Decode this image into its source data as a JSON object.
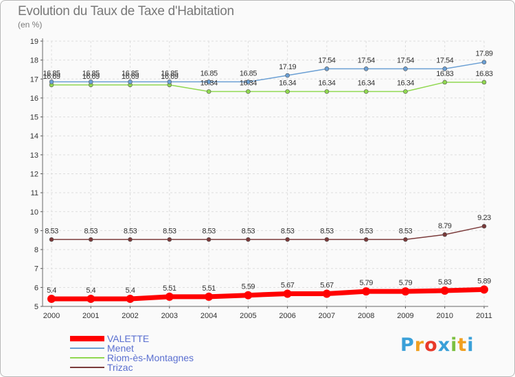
{
  "chart_data": {
    "type": "line",
    "title": "Evolution du Taux de Taxe d'Habitation",
    "subtitle": "(en %)",
    "x": [
      "2000",
      "2001",
      "2002",
      "2003",
      "2004",
      "2005",
      "2006",
      "2007",
      "2008",
      "2009",
      "2010",
      "2011"
    ],
    "ylim": [
      5,
      19
    ],
    "yticks": [
      "5",
      "6",
      "7",
      "8",
      "9",
      "10",
      "11",
      "12",
      "13",
      "14",
      "15",
      "16",
      "17",
      "18",
      "19"
    ],
    "grid": true,
    "legend_position": "bottom-left",
    "series": [
      {
        "name": "VALETTE",
        "color": "#ff0000",
        "values": [
          5.4,
          5.4,
          5.4,
          5.51,
          5.51,
          5.59,
          5.67,
          5.67,
          5.79,
          5.79,
          5.83,
          5.89
        ],
        "labels": [
          "5.4",
          "5.4",
          "5.4",
          "5.51",
          "5.51",
          "5.59",
          "5.67",
          "5.67",
          "5.79",
          "5.79",
          "5.83",
          "5.89"
        ]
      },
      {
        "name": "Menet",
        "color": "#6a9fd4",
        "values": [
          16.85,
          16.85,
          16.85,
          16.85,
          16.85,
          16.85,
          17.19,
          17.54,
          17.54,
          17.54,
          17.54,
          17.89
        ],
        "labels": [
          "16.85",
          "16.85",
          "16.85",
          "16.85",
          "16.85",
          "16.85",
          "17.19",
          "17.54",
          "17.54",
          "17.54",
          "17.54",
          "17.89"
        ]
      },
      {
        "name": "Riom-ès-Montagnes",
        "color": "#90d850",
        "values": [
          16.69,
          16.69,
          16.69,
          16.69,
          16.34,
          16.34,
          16.34,
          16.34,
          16.34,
          16.34,
          16.83,
          16.83
        ],
        "labels": [
          "16.69",
          "16.69",
          "16.69",
          "16.69",
          "16.34",
          "16.34",
          "16.34",
          "16.34",
          "16.34",
          "16.34",
          "16.83",
          "16.83"
        ]
      },
      {
        "name": "Trizac",
        "color": "#7a3a3a",
        "values": [
          8.53,
          8.53,
          8.53,
          8.53,
          8.53,
          8.53,
          8.53,
          8.53,
          8.53,
          8.53,
          8.79,
          9.23
        ],
        "labels": [
          "8.53",
          "8.53",
          "8.53",
          "8.53",
          "8.53",
          "8.53",
          "8.53",
          "8.53",
          "8.53",
          "8.53",
          "8.79",
          "9.23"
        ]
      }
    ]
  },
  "logo": {
    "letters": [
      "P",
      "r",
      "o",
      "x",
      "i",
      "t",
      "i"
    ],
    "colors": [
      "#3aa0d8",
      "#f0a020",
      "#e83a2a",
      "#3aa0d8",
      "#7cc040",
      "#f0a020",
      "#3aa0d8"
    ]
  }
}
